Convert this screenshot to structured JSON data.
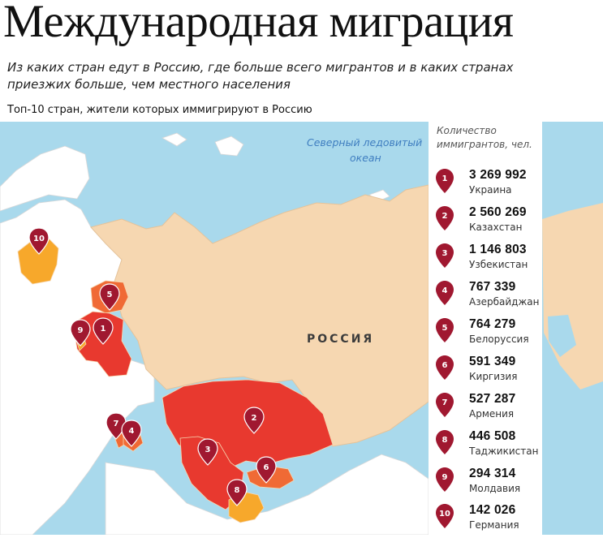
{
  "header": {
    "title": "Международная миграция",
    "subtitle": "Из каких стран едут в Россию, где больше всего мигрантов и в каких странах приезжих больше, чем местного населения",
    "note": "Топ-10 стран, жители которых иммигрируют в Россию"
  },
  "map": {
    "ocean_label_line1": "Северный ледовитый",
    "ocean_label_line2": "океан",
    "russia_label": "РОССИЯ",
    "colors": {
      "water": "#a9d9ec",
      "russia": "#f6d7b1",
      "other_land": "#ffffff",
      "top_tier": "#e8392f",
      "mid_tier": "#f06a35",
      "low_tier": "#f7a82b",
      "pin": "#a01830",
      "border": "#d8c4c4"
    },
    "pins": [
      {
        "rank": "1",
        "country": "Украина"
      },
      {
        "rank": "2",
        "country": "Казахстан"
      },
      {
        "rank": "3",
        "country": "Узбекистан"
      },
      {
        "rank": "4",
        "country": "Азербайджан"
      },
      {
        "rank": "5",
        "country": "Белоруссия"
      },
      {
        "rank": "6",
        "country": "Киргизия"
      },
      {
        "rank": "7",
        "country": "Армения"
      },
      {
        "rank": "8",
        "country": "Таджикистан"
      },
      {
        "rank": "9",
        "country": "Молдавия"
      },
      {
        "rank": "10",
        "country": "Германия"
      }
    ]
  },
  "legend": {
    "heading_line1": "Количество",
    "heading_line2": "иммигрантов, чел.",
    "items": [
      {
        "rank": "1",
        "value": "3 269 992",
        "country": "Украина"
      },
      {
        "rank": "2",
        "value": "2 560 269",
        "country": "Казахстан"
      },
      {
        "rank": "3",
        "value": "1 146 803",
        "country": "Узбекистан"
      },
      {
        "rank": "4",
        "value": "767 339",
        "country": "Азербайджан"
      },
      {
        "rank": "5",
        "value": "764 279",
        "country": "Белоруссия"
      },
      {
        "rank": "6",
        "value": "591 349",
        "country": "Киргизия"
      },
      {
        "rank": "7",
        "value": "527 287",
        "country": "Армения"
      },
      {
        "rank": "8",
        "value": "446 508",
        "country": "Таджикистан"
      },
      {
        "rank": "9",
        "value": "294 314",
        "country": "Молдавия"
      },
      {
        "rank": "10",
        "value": "142 026",
        "country": "Германия"
      }
    ]
  }
}
